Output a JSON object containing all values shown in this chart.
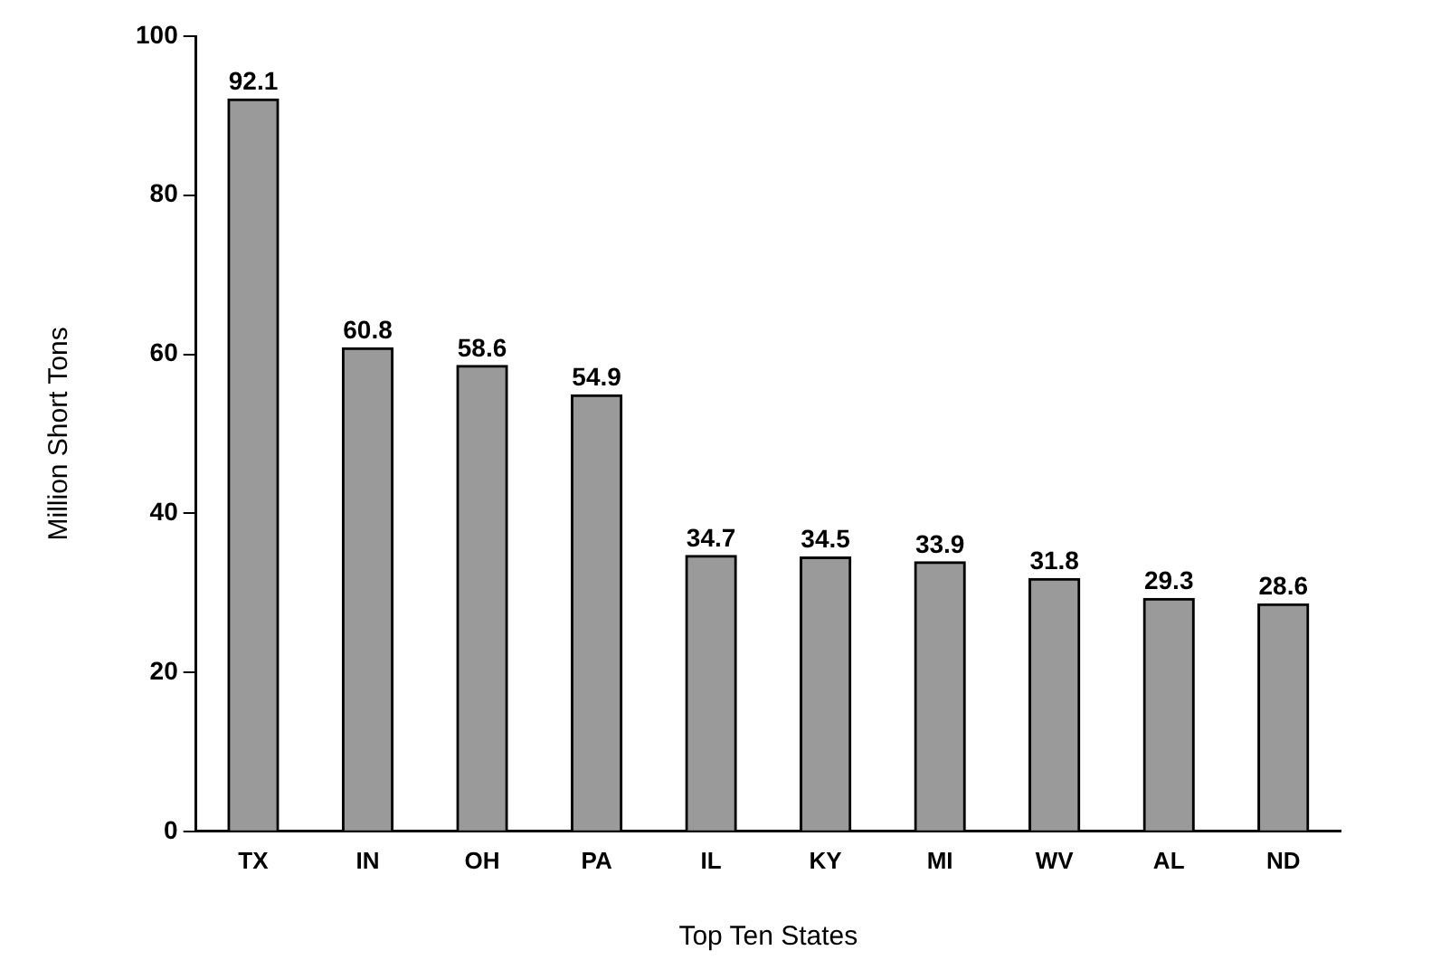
{
  "chart_data": {
    "type": "bar",
    "xlabel": "Top Ten States",
    "ylabel": "Million Short Tons",
    "categories": [
      "TX",
      "IN",
      "OH",
      "PA",
      "IL",
      "KY",
      "MI",
      "WV",
      "AL",
      "ND"
    ],
    "values": [
      92.1,
      60.8,
      58.6,
      54.9,
      34.7,
      34.5,
      33.9,
      31.8,
      29.3,
      28.6
    ],
    "color": "#9a9a9a",
    "ylim": [
      0,
      100
    ],
    "yticks": [
      0,
      20,
      40,
      60,
      80,
      100
    ],
    "grid": false,
    "legend": false,
    "data_labels": true
  }
}
